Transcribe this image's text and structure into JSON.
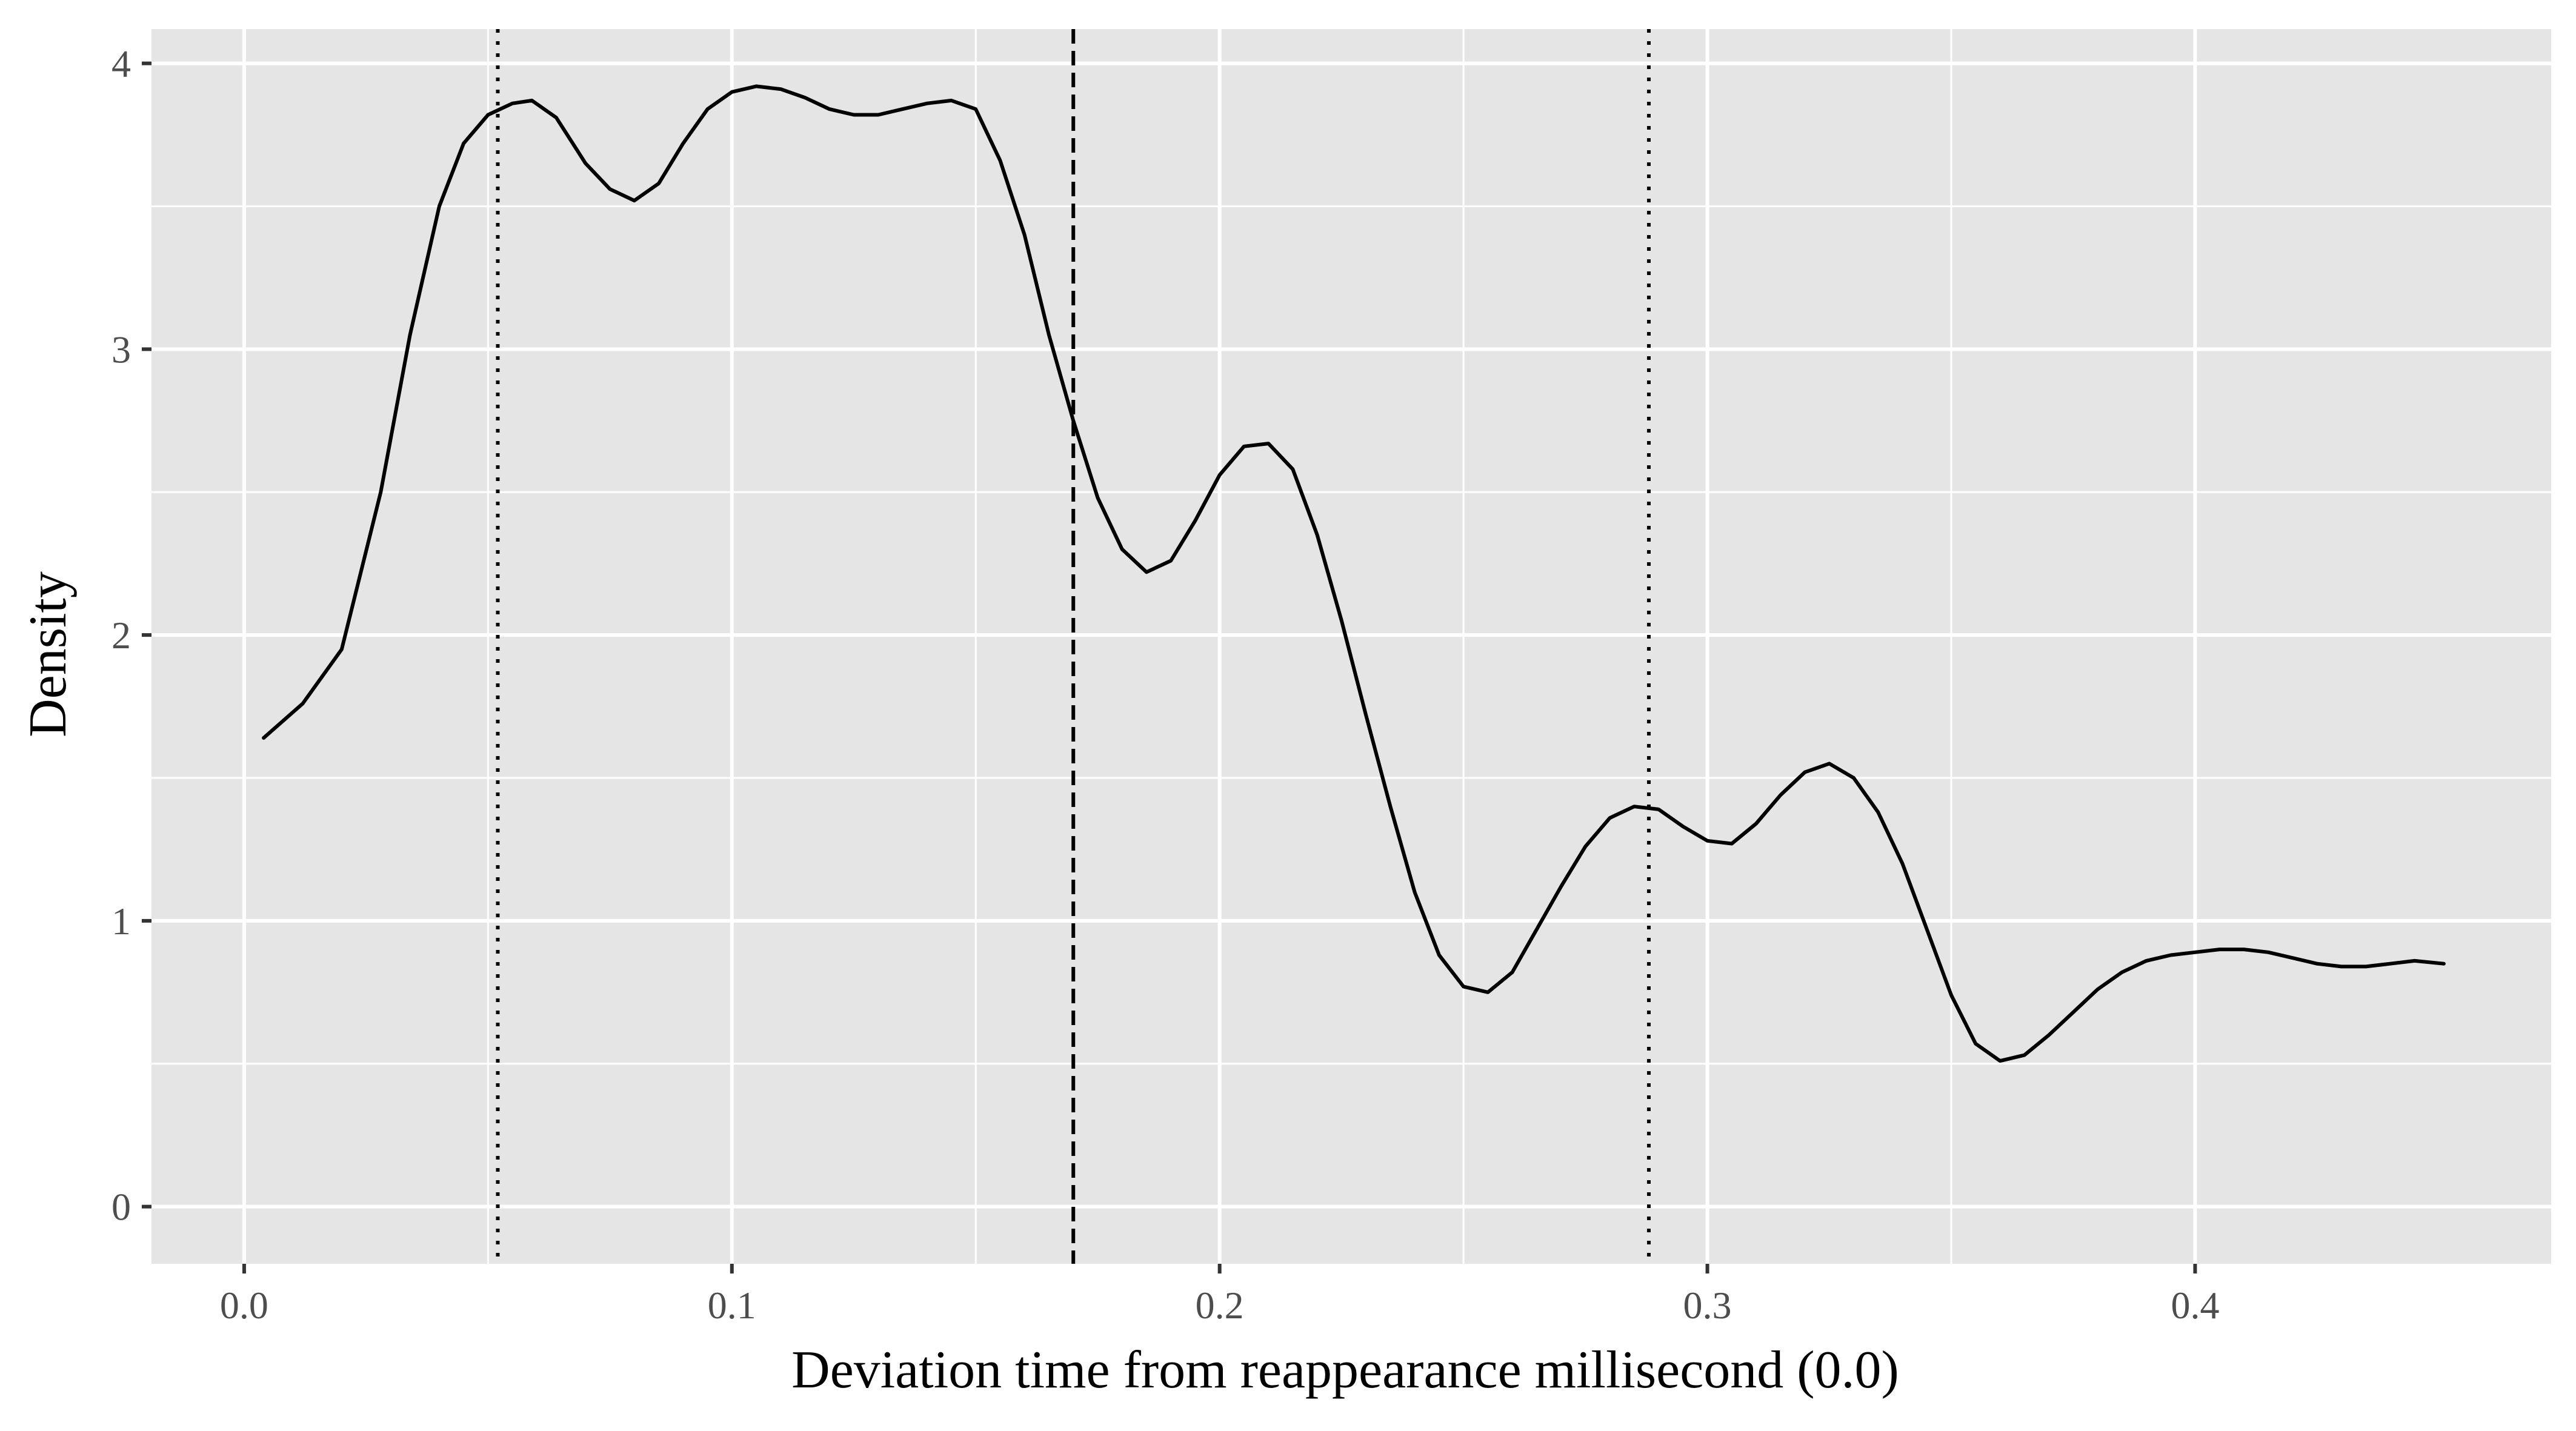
{
  "chart_data": {
    "type": "line",
    "title": "",
    "xlabel": "Deviation time from reappearance millisecond (0.0)",
    "ylabel": "Density",
    "xlim": [
      -0.019,
      0.473
    ],
    "ylim": [
      -0.2,
      4.12
    ],
    "x_ticks": [
      0.0,
      0.1,
      0.2,
      0.3,
      0.4
    ],
    "x_tick_labels": [
      "0.0",
      "0.1",
      "0.2",
      "0.3",
      "0.4"
    ],
    "y_ticks": [
      0,
      1,
      2,
      3,
      4
    ],
    "y_tick_labels": [
      "0",
      "1",
      "2",
      "3",
      "4"
    ],
    "grid": true,
    "background": "#e5e5e5",
    "grid_color": "#ffffff",
    "line_color": "#000000",
    "series": [
      {
        "x": [
          0.004,
          0.012,
          0.02,
          0.028,
          0.034,
          0.04,
          0.045,
          0.05,
          0.055,
          0.059,
          0.064,
          0.07,
          0.075,
          0.08,
          0.085,
          0.09,
          0.095,
          0.1,
          0.105,
          0.11,
          0.115,
          0.12,
          0.125,
          0.13,
          0.135,
          0.14,
          0.145,
          0.15,
          0.155,
          0.16,
          0.165,
          0.17,
          0.175,
          0.18,
          0.185,
          0.19,
          0.195,
          0.2,
          0.205,
          0.21,
          0.215,
          0.22,
          0.225,
          0.23,
          0.235,
          0.24,
          0.245,
          0.25,
          0.255,
          0.26,
          0.265,
          0.27,
          0.275,
          0.28,
          0.285,
          0.29,
          0.295,
          0.3,
          0.305,
          0.31,
          0.315,
          0.32,
          0.325,
          0.33,
          0.335,
          0.34,
          0.345,
          0.35,
          0.355,
          0.36,
          0.365,
          0.37,
          0.375,
          0.38,
          0.385,
          0.39,
          0.395,
          0.4,
          0.405,
          0.41,
          0.415,
          0.42,
          0.425,
          0.43,
          0.435,
          0.44,
          0.445,
          0.451
        ],
        "y": [
          1.64,
          1.76,
          1.95,
          2.5,
          3.05,
          3.5,
          3.72,
          3.82,
          3.86,
          3.87,
          3.81,
          3.65,
          3.56,
          3.52,
          3.58,
          3.72,
          3.84,
          3.9,
          3.92,
          3.91,
          3.88,
          3.84,
          3.82,
          3.82,
          3.84,
          3.86,
          3.87,
          3.84,
          3.66,
          3.4,
          3.05,
          2.75,
          2.48,
          2.3,
          2.22,
          2.26,
          2.4,
          2.56,
          2.66,
          2.67,
          2.58,
          2.35,
          2.05,
          1.72,
          1.4,
          1.1,
          0.88,
          0.77,
          0.75,
          0.82,
          0.97,
          1.12,
          1.26,
          1.36,
          1.4,
          1.39,
          1.33,
          1.28,
          1.27,
          1.34,
          1.44,
          1.52,
          1.55,
          1.5,
          1.38,
          1.2,
          0.97,
          0.74,
          0.57,
          0.51,
          0.53,
          0.6,
          0.68,
          0.76,
          0.82,
          0.86,
          0.88,
          0.89,
          0.9,
          0.9,
          0.89,
          0.87,
          0.85,
          0.84,
          0.84,
          0.85,
          0.86,
          0.85
        ]
      }
    ],
    "vlines": [
      {
        "x": 0.052,
        "style": "dotted"
      },
      {
        "x": 0.17,
        "style": "dashed"
      },
      {
        "x": 0.288,
        "style": "dotted"
      }
    ]
  }
}
